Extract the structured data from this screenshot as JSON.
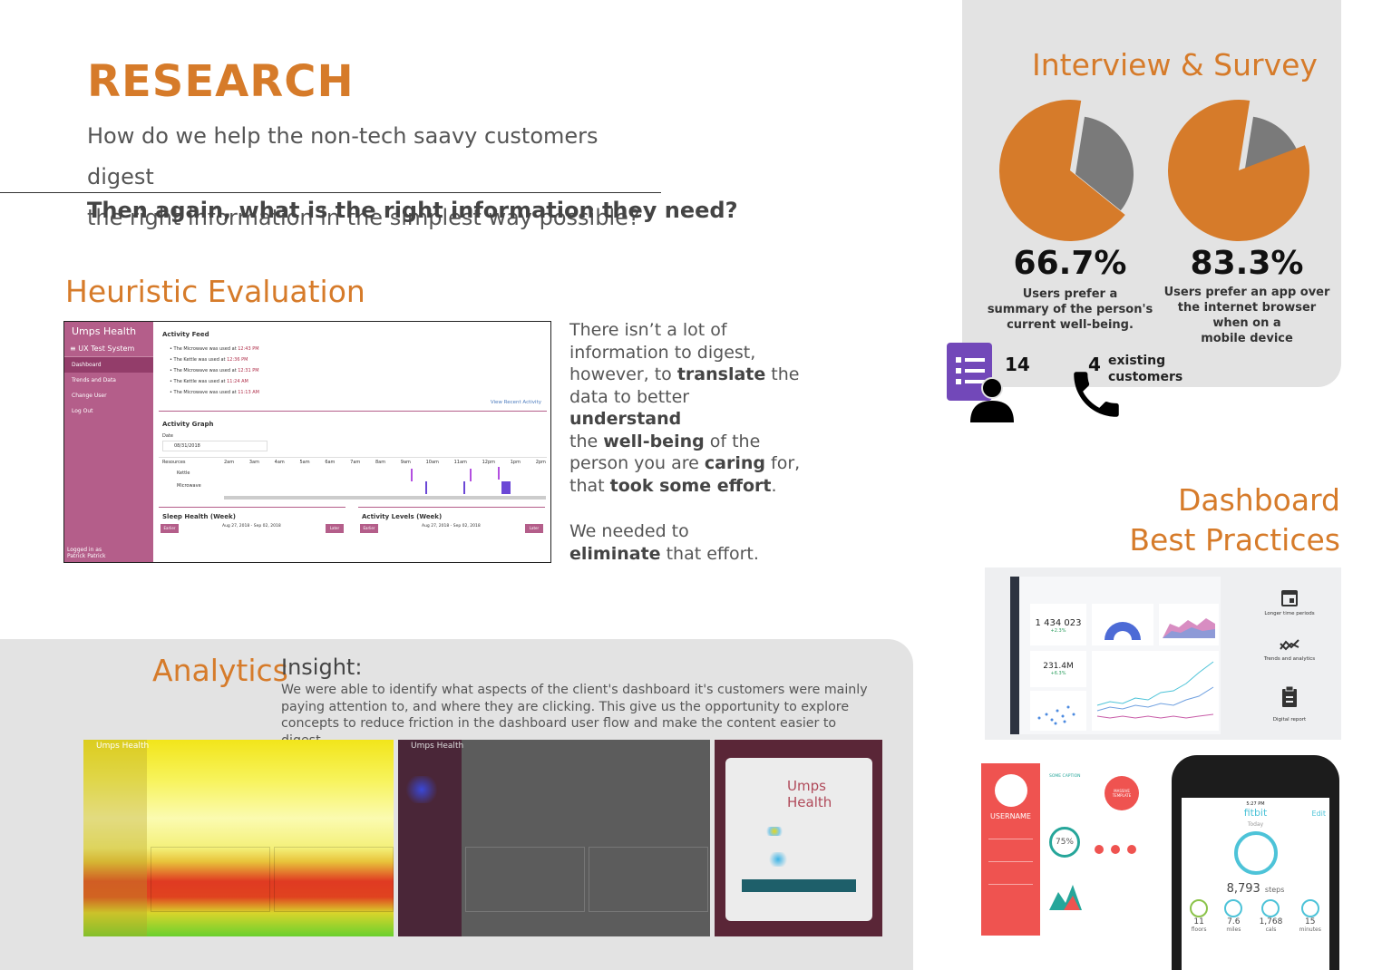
{
  "research": {
    "title": "RESEARCH",
    "question_line1": "How do we help the non-tech saavy customers digest",
    "question_line2": "the right information in the simplest way possible?",
    "question_bold": "Then again, what is the right information they need?"
  },
  "heuristic": {
    "title": "Heuristic Evaluation",
    "screenshot": {
      "logo": "Umps Health",
      "system": "≡ UX Test System",
      "nav": [
        "Dashboard",
        "Trends and Data",
        "Change User",
        "Log Out"
      ],
      "logged_in": "Logged in as",
      "user": "Patrick Patrick",
      "feed_title": "Activity Feed",
      "feed": [
        {
          "text": "The Microwave was used at",
          "time": "12:43 PM"
        },
        {
          "text": "The Kettle was used at",
          "time": "12:36 PM"
        },
        {
          "text": "The Microwave was used at",
          "time": "12:31 PM"
        },
        {
          "text": "The Kettle was used at",
          "time": "11:24 AM"
        },
        {
          "text": "The Microwave was used at",
          "time": "11:13 AM"
        }
      ],
      "view_recent": "View Recent Activity",
      "graph_title": "Activity Graph",
      "date_label": "Date",
      "date_value": "08/31/2018",
      "resources": "Resources",
      "hours": [
        "2am",
        "3am",
        "4am",
        "5am",
        "6am",
        "7am",
        "8am",
        "9am",
        "10am",
        "11am",
        "12pm",
        "1pm",
        "2pm"
      ],
      "kettle": "Kettle",
      "microwave": "Microwave",
      "sleep_title": "Sleep Health (Week)",
      "activity_title": "Activity Levels (Week)",
      "range": "Aug 27, 2018 - Sep 02, 2018",
      "earlier": "Earlier",
      "later": "Later"
    },
    "text1": [
      {
        "t": "There isn’t a lot of",
        "b": ""
      },
      {
        "t": "information to digest,",
        "b": ""
      }
    ],
    "text1_l3a": "however, to ",
    "text1_l3b": "translate",
    "text1_l3c": " the",
    "text1_l4a": "data to better ",
    "text1_l4b": "understand",
    "text1_l5a": "the ",
    "text1_l5b": "well-being",
    "text1_l5c": " of the",
    "text1_l6a": "person you are ",
    "text1_l6b": "caring",
    "text1_l6c": " for,",
    "text1_l7a": "that ",
    "text1_l7b": "took some effort",
    "text1_l7c": ".",
    "text2_l1": "We needed to",
    "text2_l2a": "eliminate",
    "text2_l2b": " that effort."
  },
  "interview": {
    "title": "Interview & Survey",
    "stat1_value": "66.7%",
    "stat1_label_lines": [
      "Users prefer a",
      "summary of the person's",
      "current well-being."
    ],
    "stat2_value": "83.3%",
    "stat2_label_lines": [
      "Users prefer an app over",
      "the internet browser",
      "when on a",
      "mobile device"
    ],
    "survey_count": "14",
    "call_count": "4",
    "call_label_lines": [
      "existing",
      "customers"
    ],
    "pie_color": "#d67b2a",
    "pie_shadow": "#7a7a7a"
  },
  "chart_data": [
    {
      "type": "pie",
      "title": "",
      "values": [
        66.7,
        33.3
      ]
    },
    {
      "type": "pie",
      "title": "",
      "values": [
        83.3,
        16.7
      ]
    }
  ],
  "dashboard": {
    "title_line1": "Dashboard",
    "title_line2": "Best Practices",
    "metric1": "1 434 023",
    "metric1_delta": "+2.3%",
    "metric2": "231.4M",
    "metric2_delta": "+6.3%",
    "icons": [
      {
        "icon": "calendar-icon",
        "label": "Longer time periods"
      },
      {
        "icon": "trend-icon",
        "label": "Trends and analytics"
      },
      {
        "icon": "clipboard-icon",
        "label": "Digital report"
      }
    ],
    "profile_name": "USERNAME",
    "profile_caption": "SOME CAPTION",
    "donut_value": "75%",
    "badge_text": "MASSIVE TEMPLATE"
  },
  "phone": {
    "time": "5:27 PM",
    "brand": "fitbit",
    "edit": "Edit",
    "today": "Today",
    "steps_value": "8,793",
    "steps_unit": "steps",
    "stats": [
      {
        "value": "11",
        "unit": "floors"
      },
      {
        "value": "7.6",
        "unit": "miles"
      },
      {
        "value": "1,768",
        "unit": "cals"
      },
      {
        "value": "15",
        "unit": "minutes"
      }
    ]
  },
  "analytics": {
    "title": "Analytics",
    "insight": "Insight:",
    "body": "We were able to identify what aspects of the client's dashboard it's customers were mainly paying attention to, and where they are clicking. This give us the opportunity to explore concepts to reduce friction in the dashboard user flow and make the content easier to digest.",
    "heat_logo": "Umps Health",
    "heat_logo2_line1": "Umps",
    "heat_logo2_line2": "Health"
  }
}
